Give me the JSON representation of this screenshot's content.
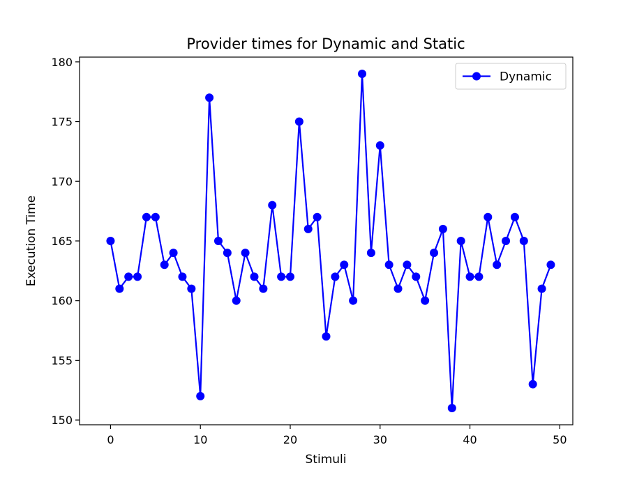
{
  "chart_data": {
    "type": "line",
    "title": "Provider times for Dynamic and Static",
    "xlabel": "Stimuli",
    "ylabel": "Execution Time",
    "xlim": [
      -3.45,
      51.45
    ],
    "ylim": [
      149.6,
      180.4
    ],
    "xticks": [
      0,
      10,
      20,
      30,
      40,
      50
    ],
    "yticks": [
      150,
      155,
      160,
      165,
      170,
      175,
      180
    ],
    "grid": false,
    "legend_position": "top-right",
    "series": [
      {
        "name": "Dynamic",
        "color": "#0000ff",
        "marker": "circle",
        "x": [
          0,
          1,
          2,
          3,
          4,
          5,
          6,
          7,
          8,
          9,
          10,
          11,
          12,
          13,
          14,
          15,
          16,
          17,
          18,
          19,
          20,
          21,
          22,
          23,
          24,
          25,
          26,
          27,
          28,
          29,
          30,
          31,
          32,
          33,
          34,
          35,
          36,
          37,
          38,
          39,
          40,
          41,
          42,
          43,
          44,
          45,
          46,
          47,
          48,
          49
        ],
        "values": [
          165,
          161,
          162,
          162,
          167,
          167,
          163,
          164,
          162,
          161,
          152,
          177,
          165,
          164,
          160,
          164,
          162,
          161,
          168,
          162,
          162,
          175,
          166,
          167,
          157,
          162,
          163,
          160,
          179,
          164,
          173,
          163,
          161,
          163,
          162,
          160,
          164,
          166,
          151,
          165,
          162,
          162,
          167,
          163,
          165,
          167,
          165,
          153,
          161,
          163
        ]
      }
    ]
  }
}
